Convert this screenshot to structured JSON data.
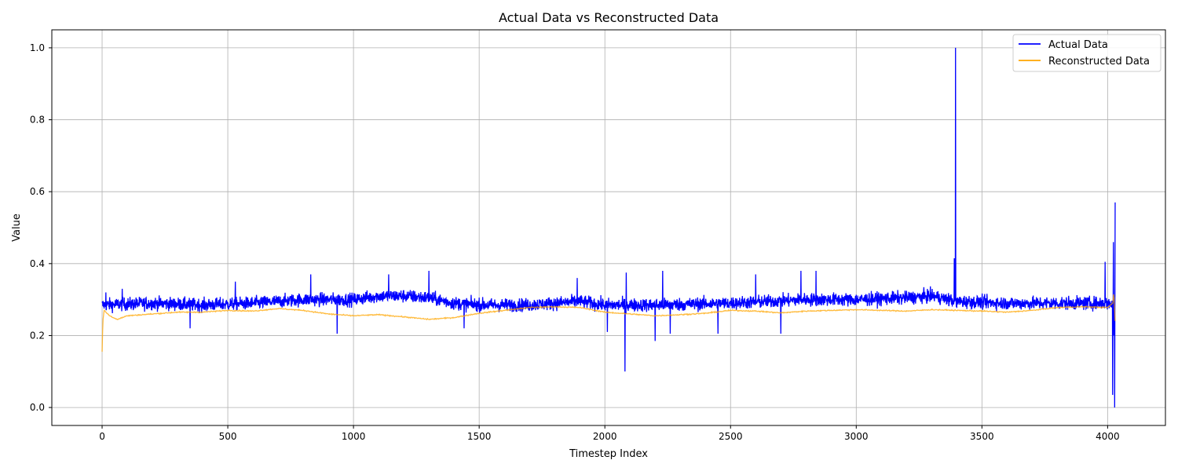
{
  "chart_data": {
    "type": "line",
    "title": "Actual Data vs Reconstructed Data",
    "xlabel": "Timestep Index",
    "ylabel": "Value",
    "xlim": [
      -200,
      4230
    ],
    "ylim": [
      -0.05,
      1.05
    ],
    "xticks": [
      0,
      500,
      1000,
      1500,
      2000,
      2500,
      3000,
      3500,
      4000
    ],
    "yticks": [
      0.0,
      0.2,
      0.4,
      0.6,
      0.8,
      1.0
    ],
    "xtick_labels": [
      "0",
      "500",
      "1000",
      "1500",
      "2000",
      "2500",
      "3000",
      "3500",
      "4000"
    ],
    "ytick_labels": [
      "0.0",
      "0.2",
      "0.4",
      "0.6",
      "0.8",
      "1.0"
    ],
    "grid": true,
    "legend_position": "top-right",
    "series": [
      {
        "name": "Actual Data",
        "color": "#0000ff",
        "x_range": [
          0,
          4030
        ],
        "baseline": [
          [
            0,
            0.285
          ],
          [
            200,
            0.29
          ],
          [
            400,
            0.285
          ],
          [
            600,
            0.29
          ],
          [
            800,
            0.3
          ],
          [
            1000,
            0.3
          ],
          [
            1100,
            0.31
          ],
          [
            1200,
            0.31
          ],
          [
            1300,
            0.305
          ],
          [
            1400,
            0.29
          ],
          [
            1500,
            0.285
          ],
          [
            1700,
            0.285
          ],
          [
            1900,
            0.295
          ],
          [
            2000,
            0.285
          ],
          [
            2200,
            0.285
          ],
          [
            2500,
            0.29
          ],
          [
            2800,
            0.3
          ],
          [
            3000,
            0.3
          ],
          [
            3200,
            0.305
          ],
          [
            3300,
            0.31
          ],
          [
            3400,
            0.295
          ],
          [
            3600,
            0.29
          ],
          [
            3800,
            0.29
          ],
          [
            4000,
            0.29
          ],
          [
            4030,
            0.29
          ]
        ],
        "spikes": [
          [
            15,
            0.32
          ],
          [
            80,
            0.33
          ],
          [
            350,
            0.22
          ],
          [
            530,
            0.35
          ],
          [
            830,
            0.37
          ],
          [
            935,
            0.205
          ],
          [
            1140,
            0.37
          ],
          [
            1300,
            0.38
          ],
          [
            1440,
            0.22
          ],
          [
            1890,
            0.36
          ],
          [
            2010,
            0.21
          ],
          [
            2080,
            0.1
          ],
          [
            2085,
            0.375
          ],
          [
            2200,
            0.185
          ],
          [
            2230,
            0.38
          ],
          [
            2260,
            0.205
          ],
          [
            2450,
            0.205
          ],
          [
            2600,
            0.37
          ],
          [
            2700,
            0.205
          ],
          [
            2780,
            0.38
          ],
          [
            2840,
            0.38
          ],
          [
            3390,
            0.415
          ],
          [
            3395,
            1.0
          ],
          [
            3398,
            0.28
          ],
          [
            3990,
            0.405
          ],
          [
            4020,
            0.035
          ],
          [
            4023,
            0.46
          ],
          [
            4025,
            0.2
          ],
          [
            4028,
            0.0
          ],
          [
            4030,
            0.57
          ]
        ]
      },
      {
        "name": "Reconstructed Data",
        "color": "#ffa500",
        "points": [
          [
            0,
            0.155
          ],
          [
            3,
            0.24
          ],
          [
            8,
            0.27
          ],
          [
            15,
            0.265
          ],
          [
            30,
            0.255
          ],
          [
            60,
            0.245
          ],
          [
            100,
            0.255
          ],
          [
            200,
            0.26
          ],
          [
            300,
            0.265
          ],
          [
            400,
            0.265
          ],
          [
            500,
            0.27
          ],
          [
            600,
            0.268
          ],
          [
            700,
            0.275
          ],
          [
            800,
            0.27
          ],
          [
            900,
            0.26
          ],
          [
            1000,
            0.255
          ],
          [
            1100,
            0.258
          ],
          [
            1200,
            0.252
          ],
          [
            1300,
            0.245
          ],
          [
            1400,
            0.25
          ],
          [
            1500,
            0.262
          ],
          [
            1600,
            0.27
          ],
          [
            1700,
            0.278
          ],
          [
            1800,
            0.28
          ],
          [
            1900,
            0.278
          ],
          [
            2000,
            0.265
          ],
          [
            2100,
            0.26
          ],
          [
            2200,
            0.255
          ],
          [
            2300,
            0.258
          ],
          [
            2400,
            0.262
          ],
          [
            2500,
            0.27
          ],
          [
            2600,
            0.268
          ],
          [
            2700,
            0.263
          ],
          [
            2800,
            0.268
          ],
          [
            2900,
            0.27
          ],
          [
            3000,
            0.272
          ],
          [
            3100,
            0.27
          ],
          [
            3200,
            0.268
          ],
          [
            3300,
            0.272
          ],
          [
            3400,
            0.27
          ],
          [
            3500,
            0.268
          ],
          [
            3600,
            0.265
          ],
          [
            3700,
            0.27
          ],
          [
            3800,
            0.278
          ],
          [
            3900,
            0.28
          ],
          [
            4000,
            0.278
          ],
          [
            4020,
            0.29
          ],
          [
            4025,
            0.32
          ],
          [
            4030,
            0.24
          ]
        ]
      }
    ]
  }
}
